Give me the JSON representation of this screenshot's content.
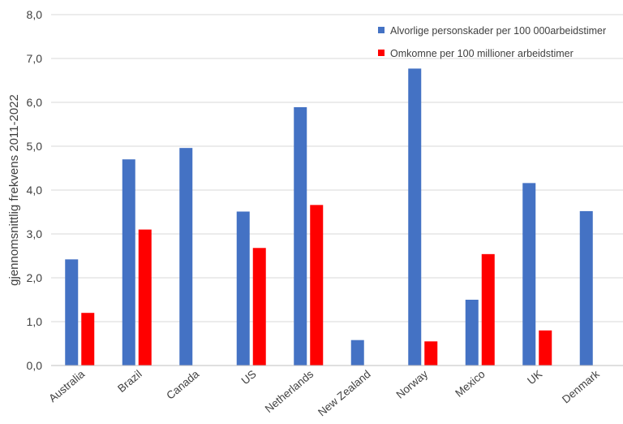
{
  "chart_data": {
    "type": "bar",
    "categories": [
      "Australia",
      "Brazil",
      "Canada",
      "US",
      "Netherlands",
      "New Zealand",
      "Norway",
      "Mexico",
      "UK",
      "Denmark"
    ],
    "series": [
      {
        "name": "Alvorlige personskader per 100 000arbeidstimer",
        "color": "#4472C4",
        "values": [
          2.42,
          4.7,
          4.96,
          3.51,
          5.89,
          0.58,
          6.77,
          1.5,
          4.16,
          3.52
        ]
      },
      {
        "name": "Omkomne per 100 millioner arbeidstimer",
        "color": "#FF0000",
        "values": [
          1.2,
          3.1,
          null,
          2.68,
          3.66,
          null,
          0.55,
          2.54,
          0.8,
          null
        ]
      }
    ],
    "ylabel": "gjennomsnittlig frekvens 2011-2022",
    "ylim": [
      0,
      8
    ],
    "yticks": [
      "0,0",
      "1,0",
      "2,0",
      "3,0",
      "4,0",
      "5,0",
      "6,0",
      "7,0",
      "8,0"
    ],
    "grid": true,
    "legend": "top-right"
  }
}
